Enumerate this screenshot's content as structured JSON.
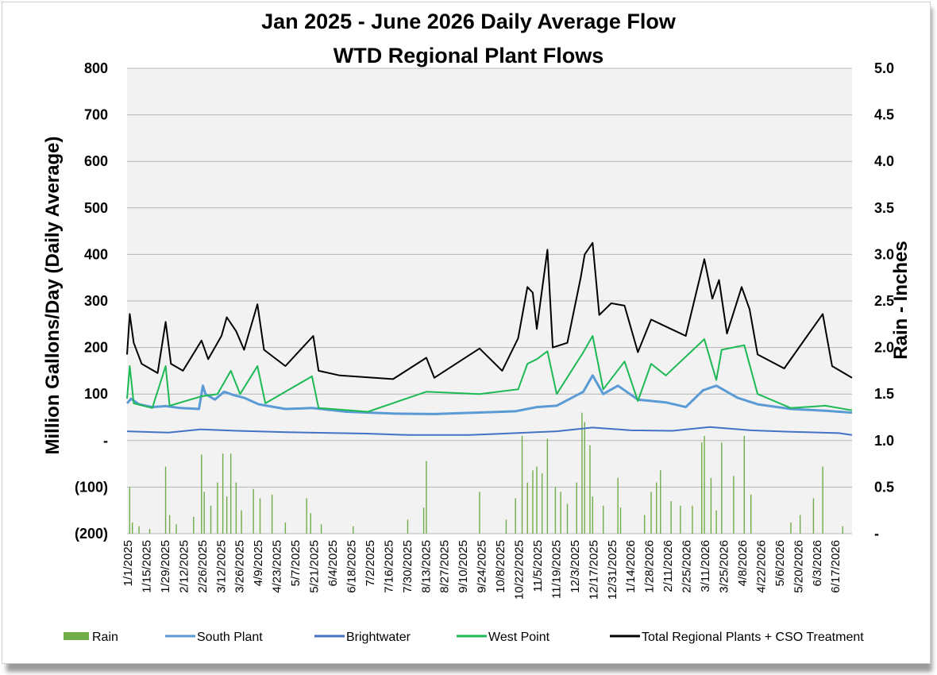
{
  "chart_data": {
    "type": "line",
    "title": "Jan 2025 - June 2026 Daily Average Flow",
    "subtitle": "WTD Regional Plant Flows",
    "ylabel_left": "Million Gallons/Day (Daily Average)",
    "ylabel_right": "Rain - Inches",
    "ylim_left": [
      -200,
      800
    ],
    "ylim_right": [
      0,
      5
    ],
    "yticks_left": [
      "800",
      "700",
      "600",
      "500",
      "400",
      "300",
      "200",
      "100",
      "-",
      "(100)",
      "(200)"
    ],
    "yticks_right": [
      "5.0",
      "4.5",
      "4.0",
      "3.5",
      "3.0",
      "2.5",
      "2.0",
      "1.5",
      "1.0",
      "0.5",
      "-"
    ],
    "xticks": [
      "1/1/2025",
      "1/15/2025",
      "1/29/2025",
      "2/12/2025",
      "2/26/2025",
      "3/12/2025",
      "3/26/2025",
      "4/9/2025",
      "4/23/2025",
      "5/7/2025",
      "5/21/2025",
      "6/4/2025",
      "6/18/2025",
      "7/2/2025",
      "7/16/2025",
      "7/30/2025",
      "8/13/2025",
      "8/27/2025",
      "9/10/2025",
      "9/24/2025",
      "10/8/2025",
      "10/22/2025",
      "11/5/2025",
      "11/19/2025",
      "12/3/2025",
      "12/17/2025",
      "12/31/2025",
      "1/14/2026",
      "1/28/2026",
      "2/11/2026",
      "2/25/2026",
      "3/11/2026",
      "3/25/2026",
      "4/8/2026",
      "4/22/2026",
      "5/6/2026",
      "5/20/2026",
      "6/3/2026",
      "6/17/2026"
    ],
    "x_start": "1/1/2025",
    "x_end": "6/30/2026",
    "grid": true,
    "legend_position": "bottom",
    "series": [
      {
        "name": "Rain",
        "type": "bar",
        "axis": "right",
        "color": "#70ad47",
        "points": [
          [
            "1/3/2025",
            0.5
          ],
          [
            "1/5/2025",
            0.12
          ],
          [
            "1/10/2025",
            0.08
          ],
          [
            "1/18/2025",
            0.05
          ],
          [
            "1/30/2025",
            0.72
          ],
          [
            "2/2/2025",
            0.2
          ],
          [
            "2/7/2025",
            0.1
          ],
          [
            "2/20/2025",
            0.18
          ],
          [
            "2/26/2025",
            0.85
          ],
          [
            "2/28/2025",
            0.45
          ],
          [
            "3/5/2025",
            0.3
          ],
          [
            "3/10/2025",
            0.55
          ],
          [
            "3/14/2025",
            0.86
          ],
          [
            "3/17/2025",
            0.4
          ],
          [
            "3/20/2025",
            0.86
          ],
          [
            "3/24/2025",
            0.55
          ],
          [
            "3/28/2025",
            0.25
          ],
          [
            "4/6/2025",
            0.48
          ],
          [
            "4/11/2025",
            0.38
          ],
          [
            "4/20/2025",
            0.42
          ],
          [
            "4/30/2025",
            0.12
          ],
          [
            "5/16/2025",
            0.38
          ],
          [
            "5/19/2025",
            0.22
          ],
          [
            "5/27/2025",
            0.1
          ],
          [
            "6/20/2025",
            0.08
          ],
          [
            "7/31/2025",
            0.15
          ],
          [
            "8/12/2025",
            0.28
          ],
          [
            "8/14/2025",
            0.78
          ],
          [
            "9/23/2025",
            0.45
          ],
          [
            "10/13/2025",
            0.15
          ],
          [
            "10/20/2025",
            0.38
          ],
          [
            "10/25/2025",
            1.05
          ],
          [
            "10/29/2025",
            0.55
          ],
          [
            "11/2/2025",
            0.68
          ],
          [
            "11/5/2025",
            0.72
          ],
          [
            "11/9/2025",
            0.65
          ],
          [
            "11/13/2025",
            1.02
          ],
          [
            "11/19/2025",
            0.5
          ],
          [
            "11/23/2025",
            0.45
          ],
          [
            "11/28/2025",
            0.32
          ],
          [
            "12/5/2025",
            0.55
          ],
          [
            "12/9/2025",
            1.3
          ],
          [
            "12/11/2025",
            1.2
          ],
          [
            "12/15/2025",
            0.95
          ],
          [
            "12/17/2025",
            0.4
          ],
          [
            "12/25/2025",
            0.3
          ],
          [
            "1/5/2026",
            0.6
          ],
          [
            "1/7/2026",
            0.28
          ],
          [
            "1/25/2026",
            0.2
          ],
          [
            "1/30/2026",
            0.45
          ],
          [
            "2/3/2026",
            0.55
          ],
          [
            "2/6/2026",
            0.68
          ],
          [
            "2/14/2026",
            0.35
          ],
          [
            "2/21/2026",
            0.3
          ],
          [
            "3/2/2026",
            0.3
          ],
          [
            "3/9/2026",
            0.98
          ],
          [
            "3/11/2026",
            1.05
          ],
          [
            "3/16/2026",
            0.6
          ],
          [
            "3/20/2026",
            0.25
          ],
          [
            "3/24/2026",
            0.98
          ],
          [
            "4/2/2026",
            0.62
          ],
          [
            "4/10/2026",
            1.05
          ],
          [
            "4/15/2026",
            0.42
          ],
          [
            "5/15/2026",
            0.12
          ],
          [
            "5/22/2026",
            0.2
          ],
          [
            "6/1/2026",
            0.38
          ],
          [
            "6/8/2026",
            0.72
          ],
          [
            "6/23/2026",
            0.08
          ]
        ]
      },
      {
        "name": "South Plant",
        "axis": "left",
        "color": "#5b9bd5",
        "points": [
          [
            "1/1/2025",
            80
          ],
          [
            "1/4/2025",
            90
          ],
          [
            "1/10/2025",
            78
          ],
          [
            "1/20/2025",
            72
          ],
          [
            "1/30/2025",
            74
          ],
          [
            "2/10/2025",
            70
          ],
          [
            "2/24/2025",
            68
          ],
          [
            "2/27/2025",
            118
          ],
          [
            "3/1/2025",
            100
          ],
          [
            "3/8/2025",
            88
          ],
          [
            "3/15/2025",
            105
          ],
          [
            "3/22/2025",
            98
          ],
          [
            "3/30/2025",
            92
          ],
          [
            "4/10/2025",
            78
          ],
          [
            "4/30/2025",
            68
          ],
          [
            "5/20/2025",
            70
          ],
          [
            "6/15/2025",
            62
          ],
          [
            "7/20/2025",
            58
          ],
          [
            "8/20/2025",
            57
          ],
          [
            "9/20/2025",
            60
          ],
          [
            "10/20/2025",
            63
          ],
          [
            "11/5/2025",
            72
          ],
          [
            "11/20/2025",
            75
          ],
          [
            "12/10/2025",
            105
          ],
          [
            "12/17/2025",
            140
          ],
          [
            "12/25/2025",
            100
          ],
          [
            "1/5/2026",
            118
          ],
          [
            "1/20/2026",
            88
          ],
          [
            "2/10/2026",
            82
          ],
          [
            "2/25/2026",
            72
          ],
          [
            "3/10/2026",
            108
          ],
          [
            "3/20/2026",
            118
          ],
          [
            "4/5/2026",
            92
          ],
          [
            "4/20/2026",
            78
          ],
          [
            "5/15/2026",
            68
          ],
          [
            "6/10/2026",
            64
          ],
          [
            "6/30/2026",
            60
          ]
        ]
      },
      {
        "name": "Brightwater",
        "axis": "left",
        "color": "#4472c4",
        "points": [
          [
            "1/1/2025",
            20
          ],
          [
            "2/1/2025",
            17
          ],
          [
            "2/25/2025",
            24
          ],
          [
            "3/25/2025",
            21
          ],
          [
            "5/1/2025",
            18
          ],
          [
            "6/30/2025",
            15
          ],
          [
            "8/1/2025",
            12
          ],
          [
            "9/15/2025",
            12
          ],
          [
            "10/20/2025",
            16
          ],
          [
            "11/20/2025",
            20
          ],
          [
            "12/17/2025",
            28
          ],
          [
            "1/15/2026",
            22
          ],
          [
            "2/15/2026",
            21
          ],
          [
            "3/15/2026",
            29
          ],
          [
            "4/15/2026",
            22
          ],
          [
            "5/15/2026",
            19
          ],
          [
            "6/20/2026",
            16
          ],
          [
            "6/30/2026",
            12
          ]
        ]
      },
      {
        "name": "West Point",
        "axis": "left",
        "color": "#1db954",
        "points": [
          [
            "1/1/2025",
            90
          ],
          [
            "1/3/2025",
            160
          ],
          [
            "1/6/2025",
            80
          ],
          [
            "1/20/2025",
            70
          ],
          [
            "1/30/2025",
            160
          ],
          [
            "2/2/2025",
            75
          ],
          [
            "2/26/2025",
            95
          ],
          [
            "3/10/2025",
            100
          ],
          [
            "3/20/2025",
            150
          ],
          [
            "3/27/2025",
            100
          ],
          [
            "4/9/2025",
            160
          ],
          [
            "4/15/2025",
            80
          ],
          [
            "5/20/2025",
            138
          ],
          [
            "5/25/2025",
            70
          ],
          [
            "7/1/2025",
            62
          ],
          [
            "8/14/2025",
            105
          ],
          [
            "9/23/2025",
            100
          ],
          [
            "10/22/2025",
            110
          ],
          [
            "10/29/2025",
            165
          ],
          [
            "11/5/2025",
            175
          ],
          [
            "11/13/2025",
            192
          ],
          [
            "11/20/2025",
            100
          ],
          [
            "12/10/2025",
            190
          ],
          [
            "12/17/2025",
            225
          ],
          [
            "12/25/2025",
            110
          ],
          [
            "1/10/2026",
            170
          ],
          [
            "1/20/2026",
            85
          ],
          [
            "1/30/2026",
            165
          ],
          [
            "2/10/2026",
            140
          ],
          [
            "3/11/2026",
            218
          ],
          [
            "3/20/2026",
            130
          ],
          [
            "3/24/2026",
            195
          ],
          [
            "4/10/2026",
            205
          ],
          [
            "4/20/2026",
            100
          ],
          [
            "5/15/2026",
            70
          ],
          [
            "6/10/2026",
            75
          ],
          [
            "6/30/2026",
            65
          ]
        ]
      },
      {
        "name": "Total Regional Plants + CSO Treatment",
        "axis": "left",
        "color": "#000000",
        "points": [
          [
            "1/1/2025",
            185
          ],
          [
            "1/3/2025",
            272
          ],
          [
            "1/6/2025",
            210
          ],
          [
            "1/12/2025",
            165
          ],
          [
            "1/24/2025",
            145
          ],
          [
            "1/30/2025",
            255
          ],
          [
            "2/3/2025",
            165
          ],
          [
            "2/12/2025",
            150
          ],
          [
            "2/26/2025",
            215
          ],
          [
            "3/3/2025",
            175
          ],
          [
            "3/13/2025",
            225
          ],
          [
            "3/17/2025",
            265
          ],
          [
            "3/24/2025",
            235
          ],
          [
            "3/30/2025",
            195
          ],
          [
            "4/9/2025",
            293
          ],
          [
            "4/14/2025",
            195
          ],
          [
            "4/30/2025",
            160
          ],
          [
            "5/21/2025",
            225
          ],
          [
            "5/25/2025",
            150
          ],
          [
            "6/10/2025",
            140
          ],
          [
            "7/20/2025",
            132
          ],
          [
            "8/14/2025",
            178
          ],
          [
            "8/20/2025",
            135
          ],
          [
            "9/23/2025",
            198
          ],
          [
            "10/10/2025",
            150
          ],
          [
            "10/22/2025",
            220
          ],
          [
            "10/29/2025",
            330
          ],
          [
            "11/2/2025",
            318
          ],
          [
            "11/5/2025",
            240
          ],
          [
            "11/13/2025",
            410
          ],
          [
            "11/17/2025",
            200
          ],
          [
            "11/28/2025",
            210
          ],
          [
            "12/8/2025",
            350
          ],
          [
            "12/11/2025",
            400
          ],
          [
            "12/17/2025",
            425
          ],
          [
            "12/22/2025",
            270
          ],
          [
            "12/31/2025",
            295
          ],
          [
            "1/10/2026",
            290
          ],
          [
            "1/20/2026",
            190
          ],
          [
            "1/30/2026",
            260
          ],
          [
            "2/10/2026",
            245
          ],
          [
            "2/25/2026",
            225
          ],
          [
            "3/11/2026",
            390
          ],
          [
            "3/17/2026",
            305
          ],
          [
            "3/22/2026",
            345
          ],
          [
            "3/28/2026",
            230
          ],
          [
            "4/8/2026",
            330
          ],
          [
            "4/14/2026",
            282
          ],
          [
            "4/20/2026",
            185
          ],
          [
            "5/10/2026",
            155
          ],
          [
            "6/8/2026",
            272
          ],
          [
            "6/15/2026",
            160
          ],
          [
            "6/30/2026",
            135
          ]
        ]
      }
    ]
  }
}
